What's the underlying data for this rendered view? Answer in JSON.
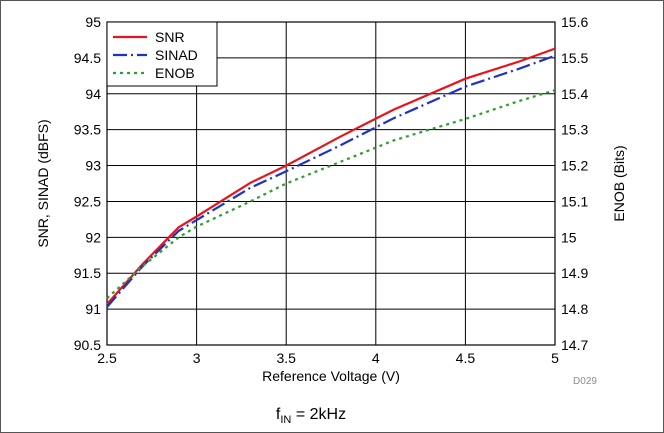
{
  "chart_data": {
    "type": "line",
    "xlabel": "Reference Voltage (V)",
    "ylabel": "SNR, SINAD (dBFS)",
    "y2label": "ENOB (Bits)",
    "xlim": [
      2.5,
      5
    ],
    "ylim": [
      90.5,
      95
    ],
    "y2lim": [
      14.7,
      15.6
    ],
    "x_ticks": [
      "2.5",
      "3",
      "3.5",
      "4",
      "4.5",
      "5"
    ],
    "y_ticks": [
      "90.5",
      "91",
      "91.5",
      "92",
      "92.5",
      "93",
      "93.5",
      "94",
      "94.5",
      "95"
    ],
    "y2_ticks": [
      "14.7",
      "14.8",
      "14.9",
      "15",
      "15.1",
      "15.2",
      "15.3",
      "15.4",
      "15.5",
      "15.6"
    ],
    "grid": true,
    "legend_position": "top-left",
    "series": [
      {
        "name": "SNR",
        "axis": "left",
        "color": "#e8141c",
        "style": "solid",
        "x": [
          2.5,
          2.7,
          2.9,
          3.0,
          3.3,
          3.5,
          3.8,
          4.1,
          4.5,
          4.8,
          5.0
        ],
        "y": [
          91.07,
          91.63,
          92.14,
          92.29,
          92.76,
          93.0,
          93.4,
          93.78,
          94.21,
          94.45,
          94.63
        ]
      },
      {
        "name": "SINAD",
        "axis": "left",
        "color": "#1c32c8",
        "style": "dashdot",
        "x": [
          2.5,
          2.7,
          2.9,
          3.0,
          3.3,
          3.5,
          3.8,
          4.1,
          4.5,
          4.8,
          5.0
        ],
        "y": [
          91.03,
          91.6,
          92.09,
          92.24,
          92.69,
          92.92,
          93.28,
          93.66,
          94.1,
          94.35,
          94.53
        ]
      },
      {
        "name": "ENOB",
        "axis": "right",
        "color": "#2e9e2e",
        "style": "dotted",
        "x": [
          2.5,
          2.7,
          2.9,
          3.0,
          3.3,
          3.5,
          3.8,
          4.1,
          4.5,
          4.8,
          5.0
        ],
        "y": [
          14.83,
          14.92,
          15.0,
          15.03,
          15.1,
          15.15,
          15.21,
          15.27,
          15.33,
          15.38,
          15.41
        ]
      }
    ],
    "code_label": "D029",
    "caption_main": "f",
    "caption_sub": "IN",
    "caption_rest": " = 2kHz"
  }
}
